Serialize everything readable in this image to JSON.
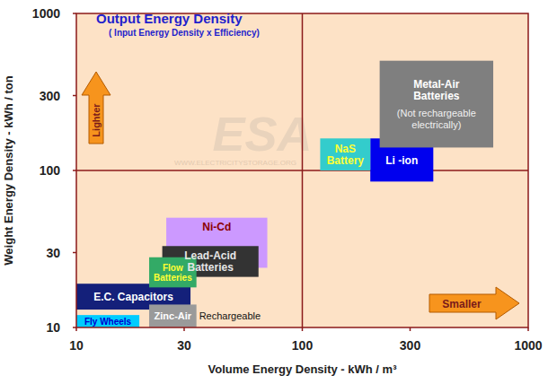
{
  "chart_data": {
    "type": "range",
    "title": "Output Energy Density",
    "subtitle": "( Input Energy Density x Efficiency)",
    "x_label": "Volume Energy Density  -  kWh / m³",
    "y_label": "Weight Energy Density  -  kWh / ton",
    "log": true,
    "grid": true,
    "xlim": [
      10,
      1000
    ],
    "ylim": [
      10,
      1000
    ],
    "xticks": [
      10,
      30,
      100,
      300,
      1000
    ],
    "yticks": [
      10,
      30,
      100,
      300,
      1000
    ],
    "annotations": [
      "Lighter",
      "Smaller"
    ],
    "watermark": [
      "ESA",
      "WWW.ELECTRICITYSTORAGE.ORG"
    ],
    "series": [
      {
        "name": "Ni-Cd",
        "color": "#cc99ff",
        "x": [
          25,
          70
        ],
        "values": [
          24,
          50
        ]
      },
      {
        "name": "Lead-Acid Batteries",
        "color": "#333333",
        "x": [
          24,
          64
        ],
        "values": [
          21,
          33
        ]
      },
      {
        "name": "E.C. Capacitors",
        "color": "#14207a",
        "x": [
          10,
          32
        ],
        "values": [
          13,
          19
        ]
      },
      {
        "name": "Flow Batteries",
        "color": "#33aa66",
        "x": [
          21,
          34
        ],
        "values": [
          18,
          28
        ]
      },
      {
        "name": "Zinc-Air",
        "color": "#9a9a9a",
        "x": [
          21,
          34
        ],
        "values": [
          10,
          14
        ],
        "note": "Rechargeable"
      },
      {
        "name": "Fly Wheels",
        "color": "#00ccff",
        "x": [
          10,
          19
        ],
        "values": [
          10,
          12
        ]
      },
      {
        "name": "Li -ion",
        "color": "#0000ee",
        "x": [
          200,
          380
        ],
        "values": [
          85,
          160
        ]
      },
      {
        "name": "NaS Battery",
        "color": "#33cccc",
        "x": [
          120,
          200
        ],
        "values": [
          100,
          160
        ]
      },
      {
        "name": "Metal-Air Batteries",
        "color": "#7f7f7f",
        "x": [
          220,
          700
        ],
        "values": [
          140,
          500
        ],
        "note": "(Not rechargeable electrically)"
      }
    ]
  }
}
